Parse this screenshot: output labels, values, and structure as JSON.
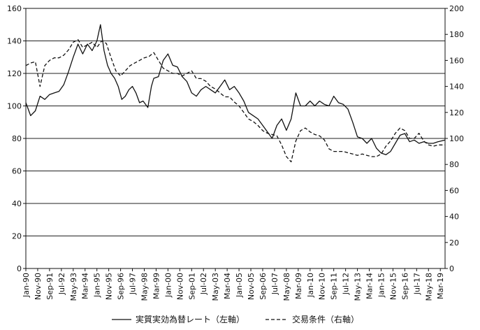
{
  "chart_data": {
    "type": "line",
    "title": "",
    "xlabel": "",
    "ylabel_left": "",
    "ylabel_right": "",
    "left_axis": {
      "min": 0,
      "max": 160,
      "ticks": [
        0,
        20,
        40,
        60,
        80,
        100,
        120,
        140,
        160
      ]
    },
    "right_axis": {
      "min": 0,
      "max": 200,
      "ticks": [
        0,
        20,
        40,
        60,
        80,
        100,
        120,
        140,
        160,
        180,
        200
      ]
    },
    "grid": "horizontal",
    "legend_position": "bottom",
    "x_tick_labels": [
      "Jan-90",
      "Nov-90",
      "Sep-91",
      "Jul-92",
      "May-93",
      "Mar-94",
      "Jan-95",
      "Nov-95",
      "Sep-96",
      "Jul-97",
      "May-98",
      "Mar-99",
      "Jan-00",
      "Nov-00",
      "Sep-01",
      "Jul-02",
      "May-03",
      "Mar-04",
      "Jan-05",
      "Nov-05",
      "Sep-06",
      "Jul-07",
      "May-08",
      "Mar-09",
      "Jan-10",
      "Nov-10",
      "Sep-11",
      "Jul-12",
      "May-13",
      "Mar-14",
      "Jan-15",
      "Nov-15",
      "Sep-16",
      "Jul-17",
      "May-18",
      "Mar-19"
    ],
    "x_range": [
      "Jan-90",
      "Jul-19"
    ],
    "series": [
      {
        "name": "実質実効為替レート（左軸）",
        "axis": "left",
        "style": "solid",
        "points": [
          [
            "Jan-90",
            102
          ],
          [
            "May-90",
            94
          ],
          [
            "Sep-90",
            97
          ],
          [
            "Jan-91",
            106
          ],
          [
            "May-91",
            104
          ],
          [
            "Sep-91",
            107
          ],
          [
            "Jan-92",
            108
          ],
          [
            "May-92",
            109
          ],
          [
            "Sep-92",
            113
          ],
          [
            "Jan-93",
            121
          ],
          [
            "May-93",
            130
          ],
          [
            "Sep-93",
            138
          ],
          [
            "Jan-94",
            132
          ],
          [
            "May-94",
            138
          ],
          [
            "Sep-94",
            134
          ],
          [
            "Jan-95",
            140
          ],
          [
            "Apr-95",
            150
          ],
          [
            "Jul-95",
            134
          ],
          [
            "Oct-95",
            125
          ],
          [
            "Jan-96",
            120
          ],
          [
            "Apr-96",
            117
          ],
          [
            "Jul-96",
            112
          ],
          [
            "Oct-96",
            104
          ],
          [
            "Jan-97",
            106
          ],
          [
            "Apr-97",
            110
          ],
          [
            "Jul-97",
            112
          ],
          [
            "Oct-97",
            108
          ],
          [
            "Jan-98",
            102
          ],
          [
            "Apr-98",
            103
          ],
          [
            "Aug-98",
            99
          ],
          [
            "Nov-98",
            112
          ],
          [
            "Jan-99",
            117
          ],
          [
            "May-99",
            118
          ],
          [
            "Sep-99",
            128
          ],
          [
            "Jan-00",
            132
          ],
          [
            "May-00",
            125
          ],
          [
            "Sep-00",
            124
          ],
          [
            "Jan-01",
            118
          ],
          [
            "May-01",
            115
          ],
          [
            "Sep-01",
            108
          ],
          [
            "Jan-02",
            106
          ],
          [
            "May-02",
            110
          ],
          [
            "Sep-02",
            112
          ],
          [
            "Jan-03",
            110
          ],
          [
            "May-03",
            108
          ],
          [
            "Sep-03",
            112
          ],
          [
            "Jan-04",
            116
          ],
          [
            "May-04",
            110
          ],
          [
            "Sep-04",
            112
          ],
          [
            "Jan-05",
            108
          ],
          [
            "May-05",
            103
          ],
          [
            "Sep-05",
            96
          ],
          [
            "Jan-06",
            94
          ],
          [
            "May-06",
            92
          ],
          [
            "Sep-06",
            88
          ],
          [
            "Jan-07",
            84
          ],
          [
            "May-07",
            80
          ],
          [
            "Sep-07",
            88
          ],
          [
            "Jan-08",
            92
          ],
          [
            "May-08",
            85
          ],
          [
            "Sep-08",
            92
          ],
          [
            "Jan-09",
            108
          ],
          [
            "May-09",
            100
          ],
          [
            "Sep-09",
            100
          ],
          [
            "Jan-10",
            103
          ],
          [
            "May-10",
            100
          ],
          [
            "Sep-10",
            103
          ],
          [
            "Jan-11",
            101
          ],
          [
            "May-11",
            100
          ],
          [
            "Sep-11",
            106
          ],
          [
            "Jan-12",
            102
          ],
          [
            "May-12",
            101
          ],
          [
            "Sep-12",
            98
          ],
          [
            "Jan-13",
            90
          ],
          [
            "May-13",
            81
          ],
          [
            "Sep-13",
            80
          ],
          [
            "Jan-14",
            77
          ],
          [
            "May-14",
            80
          ],
          [
            "Sep-14",
            74
          ],
          [
            "Jan-15",
            71
          ],
          [
            "May-15",
            70
          ],
          [
            "Sep-15",
            72
          ],
          [
            "Jan-16",
            77
          ],
          [
            "May-16",
            82
          ],
          [
            "Sep-16",
            83
          ],
          [
            "Jan-17",
            78
          ],
          [
            "May-17",
            79
          ],
          [
            "Sep-17",
            77
          ],
          [
            "Jan-18",
            78
          ],
          [
            "May-18",
            77
          ],
          [
            "Sep-18",
            77
          ],
          [
            "Jan-19",
            78
          ],
          [
            "Jul-19",
            79
          ]
        ]
      },
      {
        "name": "交易条件（右軸）",
        "axis": "right",
        "style": "dashed",
        "points": [
          [
            "Jan-90",
            156
          ],
          [
            "May-90",
            158
          ],
          [
            "Sep-90",
            159
          ],
          [
            "Jan-91",
            140
          ],
          [
            "May-91",
            156
          ],
          [
            "Sep-91",
            160
          ],
          [
            "Jan-92",
            162
          ],
          [
            "May-92",
            162
          ],
          [
            "Sep-92",
            164
          ],
          [
            "Jan-93",
            168
          ],
          [
            "May-93",
            174
          ],
          [
            "Sep-93",
            176
          ],
          [
            "Jan-94",
            170
          ],
          [
            "May-94",
            172
          ],
          [
            "Sep-94",
            174
          ],
          [
            "Jan-95",
            170
          ],
          [
            "May-95",
            175
          ],
          [
            "Sep-95",
            173
          ],
          [
            "Jan-96",
            162
          ],
          [
            "May-96",
            152
          ],
          [
            "Sep-96",
            148
          ],
          [
            "Jan-97",
            152
          ],
          [
            "May-97",
            156
          ],
          [
            "Sep-97",
            158
          ],
          [
            "Jan-98",
            160
          ],
          [
            "May-98",
            162
          ],
          [
            "Sep-98",
            163
          ],
          [
            "Jan-99",
            166
          ],
          [
            "May-99",
            160
          ],
          [
            "Sep-99",
            154
          ],
          [
            "Jan-00",
            152
          ],
          [
            "May-00",
            150
          ],
          [
            "Sep-00",
            150
          ],
          [
            "Jan-01",
            148
          ],
          [
            "May-01",
            150
          ],
          [
            "Sep-01",
            152
          ],
          [
            "Jan-02",
            146
          ],
          [
            "May-02",
            146
          ],
          [
            "Sep-02",
            144
          ],
          [
            "Jan-03",
            140
          ],
          [
            "May-03",
            138
          ],
          [
            "Sep-03",
            135
          ],
          [
            "Jan-04",
            132
          ],
          [
            "May-04",
            132
          ],
          [
            "Sep-04",
            128
          ],
          [
            "Jan-05",
            125
          ],
          [
            "May-05",
            120
          ],
          [
            "Sep-05",
            115
          ],
          [
            "Jan-06",
            113
          ],
          [
            "May-06",
            110
          ],
          [
            "Sep-06",
            106
          ],
          [
            "Jan-07",
            104
          ],
          [
            "May-07",
            103
          ],
          [
            "Sep-07",
            102
          ],
          [
            "Jan-08",
            95
          ],
          [
            "May-08",
            86
          ],
          [
            "Sep-08",
            82
          ],
          [
            "Jan-09",
            98
          ],
          [
            "May-09",
            106
          ],
          [
            "Sep-09",
            108
          ],
          [
            "Jan-10",
            105
          ],
          [
            "May-10",
            103
          ],
          [
            "Sep-10",
            102
          ],
          [
            "Jan-11",
            99
          ],
          [
            "May-11",
            92
          ],
          [
            "Sep-11",
            90
          ],
          [
            "Jan-12",
            90
          ],
          [
            "May-12",
            90
          ],
          [
            "Sep-12",
            89
          ],
          [
            "Jan-13",
            88
          ],
          [
            "May-13",
            87
          ],
          [
            "Sep-13",
            88
          ],
          [
            "Jan-14",
            87
          ],
          [
            "May-14",
            86
          ],
          [
            "Sep-14",
            86
          ],
          [
            "Jan-15",
            88
          ],
          [
            "May-15",
            94
          ],
          [
            "Sep-15",
            98
          ],
          [
            "Jan-16",
            104
          ],
          [
            "May-16",
            108
          ],
          [
            "Sep-16",
            106
          ],
          [
            "Jan-17",
            100
          ],
          [
            "May-17",
            100
          ],
          [
            "Sep-17",
            104
          ],
          [
            "Jan-18",
            98
          ],
          [
            "May-18",
            95
          ],
          [
            "Sep-18",
            94
          ],
          [
            "Jan-19",
            95
          ],
          [
            "Jul-19",
            95
          ]
        ]
      }
    ]
  }
}
